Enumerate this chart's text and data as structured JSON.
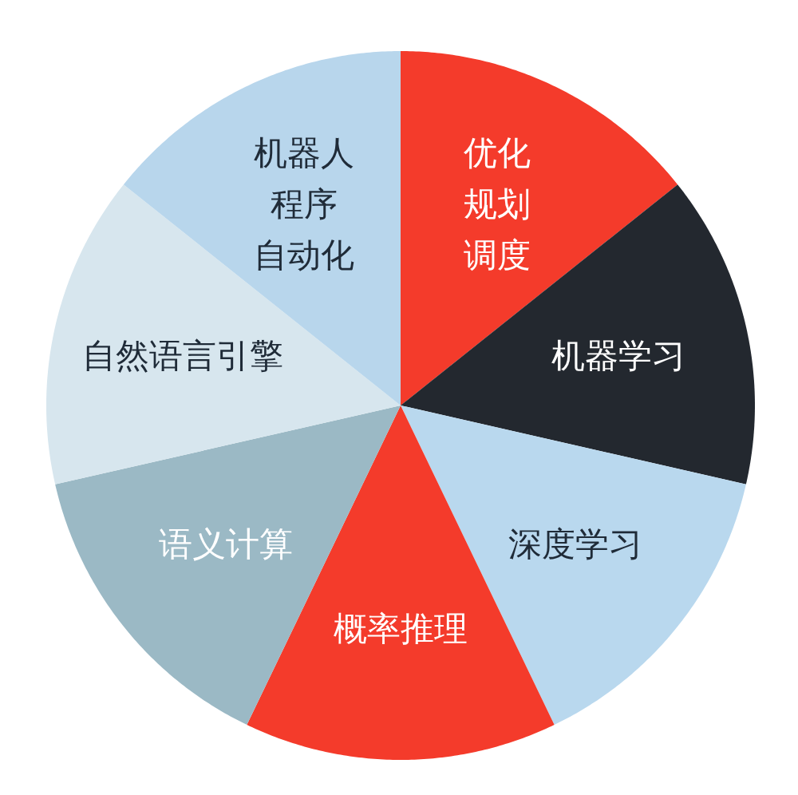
{
  "chart_data": {
    "type": "pie",
    "categories": [
      "优化规划调度",
      "机器学习",
      "深度学习",
      "概率推理",
      "语义计算",
      "自然语言引擎",
      "机器人程序自动化"
    ],
    "values": [
      14.29,
      14.29,
      14.29,
      14.29,
      14.29,
      14.29,
      14.29
    ],
    "colors": [
      "#f43b2b",
      "#23282f",
      "#b9d8ee",
      "#f43b2b",
      "#9bb9c5",
      "#d7e6ee",
      "#b8d6ec"
    ]
  }
}
